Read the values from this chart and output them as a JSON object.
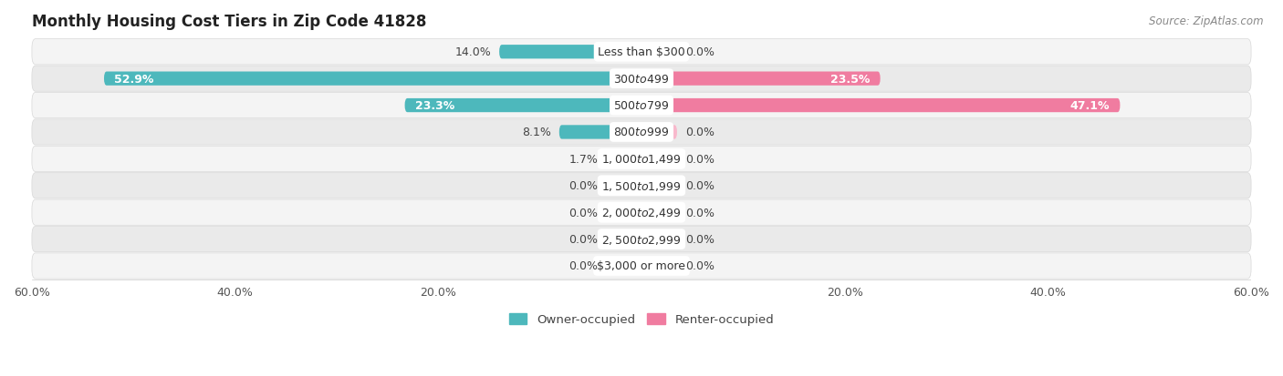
{
  "title": "Monthly Housing Cost Tiers in Zip Code 41828",
  "source": "Source: ZipAtlas.com",
  "categories": [
    "Less than $300",
    "$300 to $499",
    "$500 to $799",
    "$800 to $999",
    "$1,000 to $1,499",
    "$1,500 to $1,999",
    "$2,000 to $2,499",
    "$2,500 to $2,999",
    "$3,000 or more"
  ],
  "owner_values": [
    14.0,
    52.9,
    23.3,
    8.1,
    1.7,
    0.0,
    0.0,
    0.0,
    0.0
  ],
  "renter_values": [
    0.0,
    23.5,
    47.1,
    0.0,
    0.0,
    0.0,
    0.0,
    0.0,
    0.0
  ],
  "owner_color": "#4db8bc",
  "renter_color": "#f07ca0",
  "owner_color_light": "#a8dfe0",
  "renter_color_light": "#f8b8cc",
  "row_bg_light": "#f4f4f4",
  "row_bg_dark": "#eaeaea",
  "axis_limit": 60.0,
  "bar_height": 0.52,
  "stub_size": 3.5,
  "title_fontsize": 12,
  "value_fontsize": 9,
  "cat_fontsize": 9,
  "tick_fontsize": 9,
  "legend_fontsize": 9.5,
  "source_fontsize": 8.5
}
